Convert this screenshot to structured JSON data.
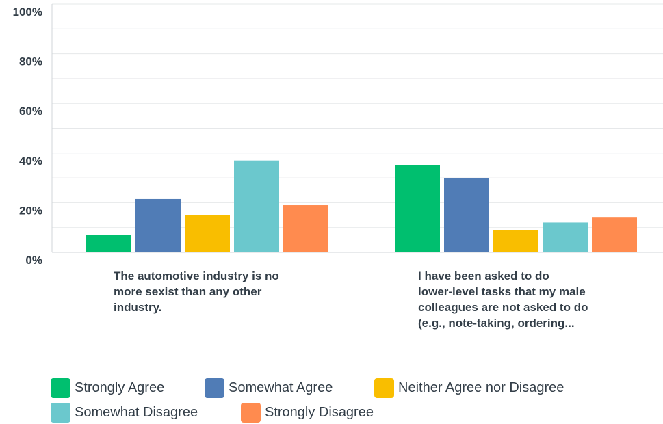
{
  "chart_data": {
    "type": "bar",
    "categories": [
      [
        "The automotive industry is no",
        "more sexist than any other",
        "industry."
      ],
      [
        "I have been asked to do",
        "lower-level tasks that my male",
        "colleagues are not asked to do",
        "(e.g., note-taking, ordering..."
      ]
    ],
    "series": [
      {
        "name": "Strongly Agree",
        "color": "#00bf6f",
        "values": [
          7,
          35
        ]
      },
      {
        "name": "Somewhat Agree",
        "color": "#507cb6",
        "values": [
          21.5,
          30
        ]
      },
      {
        "name": "Neither Agree nor Disagree",
        "color": "#f9be00",
        "values": [
          15,
          9
        ]
      },
      {
        "name": "Somewhat Disagree",
        "color": "#6bc8cd",
        "values": [
          37,
          12
        ]
      },
      {
        "name": "Strongly Disagree",
        "color": "#ff8b4f",
        "values": [
          19,
          14
        ]
      }
    ],
    "yticks": [
      "0%",
      "20%",
      "40%",
      "60%",
      "80%",
      "100%"
    ],
    "ylim": [
      0,
      100
    ],
    "grid": true,
    "legend_position": "bottom"
  }
}
